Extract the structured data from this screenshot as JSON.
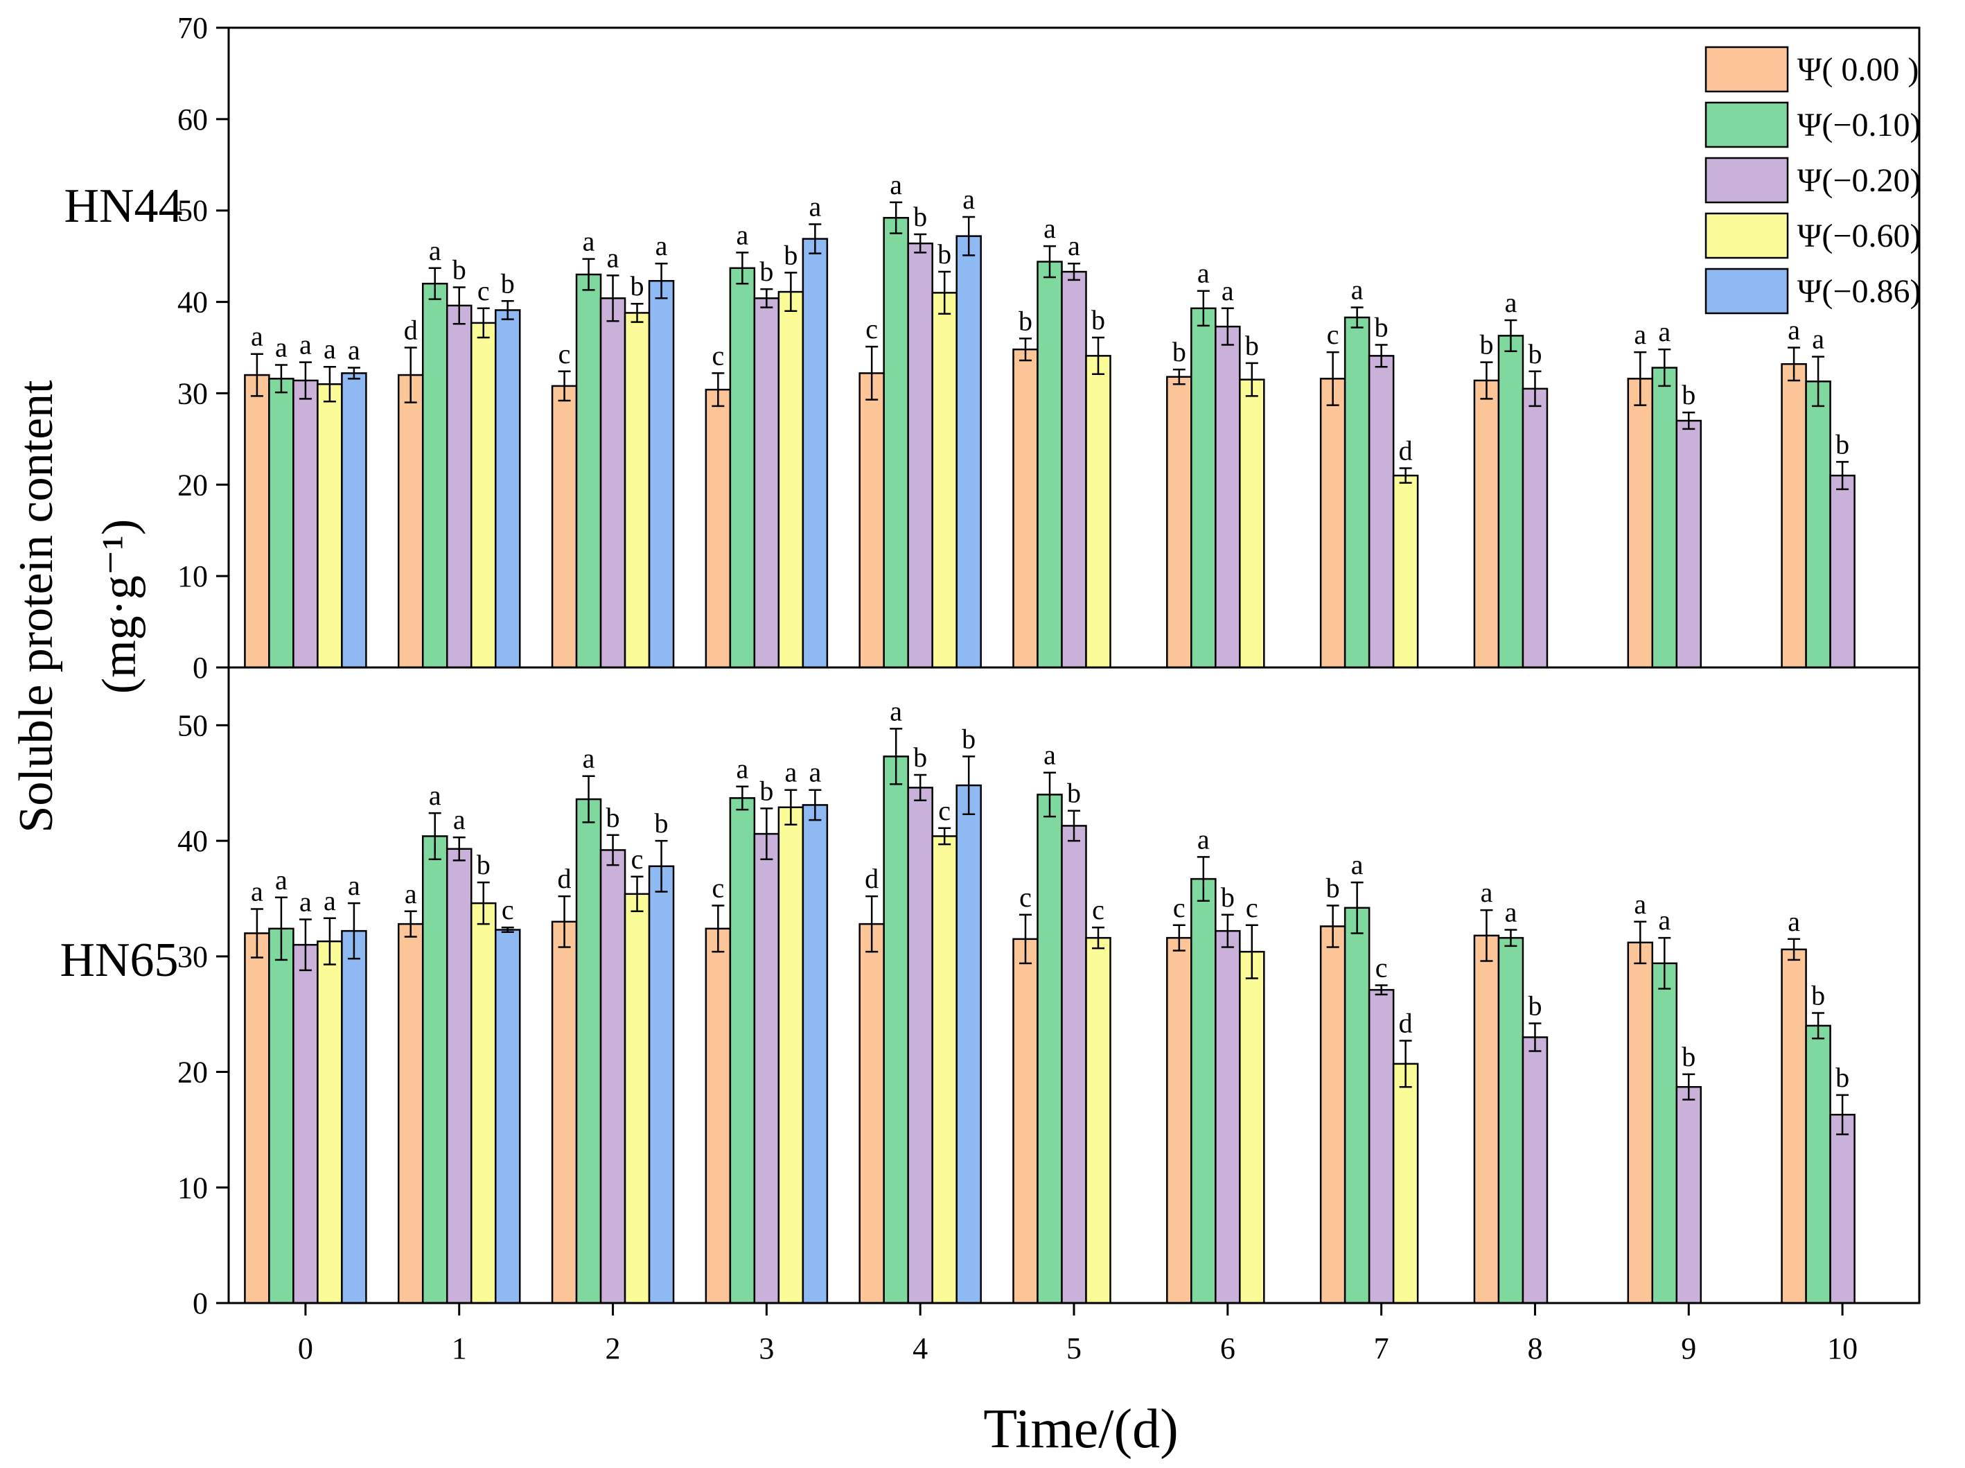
{
  "chart_data": {
    "type": "bar",
    "categories": [
      "0",
      "1",
      "2",
      "3",
      "4",
      "5",
      "6",
      "7",
      "8",
      "9",
      "10"
    ],
    "xlabel": "Time/(d)",
    "ylabel_line1": "Soluble protein content",
    "ylabel_line2": "(mg·g⁻¹)",
    "series_names": [
      "Ψ( 0.00 )",
      "Ψ(−0.10)",
      "Ψ(−0.20)",
      "Ψ(−0.60)",
      "Ψ(−0.86)"
    ],
    "colors": [
      "#FBC598",
      "#7FD99E",
      "#C9B1D9",
      "#FBFB97",
      "#8FB9F3"
    ],
    "legend_position": "top-right",
    "panels": [
      {
        "label": "HN44",
        "ylim": [
          0,
          70
        ],
        "yticks": [
          0,
          10,
          20,
          30,
          40,
          50,
          60,
          70
        ],
        "series": [
          {
            "name": "Ψ( 0.00 )",
            "values": [
              32,
              32,
              30.8,
              30.4,
              32.2,
              34.8,
              31.8,
              31.6,
              31.4,
              31.6,
              33.2
            ],
            "errors": [
              2.3,
              3,
              1.6,
              1.8,
              2.9,
              1.2,
              0.8,
              2.9,
              2,
              2.9,
              1.8
            ],
            "letters": [
              "a",
              "d",
              "c",
              "c",
              "c",
              "b",
              "b",
              "c",
              "b",
              "a",
              "a"
            ]
          },
          {
            "name": "Ψ(−0.10)",
            "values": [
              31.6,
              42,
              43,
              43.7,
              49.2,
              44.4,
              39.3,
              38.3,
              36.3,
              32.8,
              31.3
            ],
            "errors": [
              1.5,
              1.7,
              1.7,
              1.7,
              1.7,
              1.7,
              1.9,
              1.1,
              1.7,
              2,
              2.7
            ],
            "letters": [
              "a",
              "a",
              "a",
              "a",
              "a",
              "a",
              "a",
              "a",
              "a",
              "a",
              "a"
            ]
          },
          {
            "name": "Ψ(−0.20)",
            "values": [
              31.4,
              39.6,
              40.4,
              40.4,
              46.4,
              43.3,
              37.3,
              34.1,
              30.5,
              27,
              21
            ],
            "errors": [
              2,
              2,
              2.5,
              1,
              1,
              0.9,
              2,
              1.2,
              1.9,
              0.9,
              1.5
            ],
            "letters": [
              "a",
              "b",
              "a",
              "b",
              "b",
              "a",
              "a",
              "b",
              "b",
              "b",
              "b"
            ]
          },
          {
            "name": "Ψ(−0.60)",
            "values": [
              31,
              37.7,
              38.8,
              41.1,
              41,
              34.1,
              31.5,
              21,
              null,
              null,
              null
            ],
            "errors": [
              1.9,
              1.6,
              1,
              2.1,
              2.3,
              2,
              1.8,
              0.8,
              null,
              null,
              null
            ],
            "letters": [
              "a",
              "c",
              "b",
              "b",
              "b",
              "b",
              "b",
              "d",
              "",
              "",
              ""
            ]
          },
          {
            "name": "Ψ(−0.86)",
            "values": [
              32.2,
              39.1,
              42.3,
              46.9,
              47.2,
              null,
              null,
              null,
              null,
              null,
              null
            ],
            "errors": [
              0.6,
              1,
              1.9,
              1.6,
              2.1,
              null,
              null,
              null,
              null,
              null,
              null
            ],
            "letters": [
              "a",
              "b",
              "a",
              "a",
              "a",
              "",
              "",
              "",
              "",
              "",
              ""
            ]
          }
        ]
      },
      {
        "label": "HN65",
        "ylim": [
          0,
          55
        ],
        "yticks": [
          0,
          10,
          20,
          30,
          40,
          50
        ],
        "series": [
          {
            "name": "Ψ( 0.00 )",
            "values": [
              32,
              32.8,
              33,
              32.4,
              32.8,
              31.5,
              31.6,
              32.6,
              31.8,
              31.2,
              30.6
            ],
            "errors": [
              2.1,
              1.1,
              2.2,
              2,
              2.4,
              2.1,
              1.1,
              1.8,
              2.2,
              1.8,
              0.9
            ],
            "letters": [
              "a",
              "a",
              "d",
              "c",
              "d",
              "c",
              "c",
              "b",
              "a",
              "a",
              "a"
            ]
          },
          {
            "name": "Ψ(−0.10)",
            "values": [
              32.4,
              40.4,
              43.6,
              43.7,
              47.3,
              44,
              36.7,
              34.2,
              31.6,
              29.4,
              24
            ],
            "errors": [
              2.7,
              2,
              2,
              1,
              2.4,
              1.9,
              1.9,
              2.2,
              0.7,
              2.2,
              1.1
            ],
            "letters": [
              "a",
              "a",
              "a",
              "a",
              "a",
              "a",
              "a",
              "a",
              "a",
              "a",
              "b"
            ]
          },
          {
            "name": "Ψ(−0.20)",
            "values": [
              31,
              39.3,
              39.2,
              40.6,
              44.6,
              41.3,
              32.2,
              27.1,
              23,
              18.7,
              16.3
            ],
            "errors": [
              2.2,
              1,
              1.3,
              2.2,
              1.1,
              1.3,
              1.4,
              0.4,
              1.2,
              1.1,
              1.7
            ],
            "letters": [
              "a",
              "a",
              "b",
              "b",
              "b",
              "b",
              "b",
              "c",
              "b",
              "b",
              "b"
            ]
          },
          {
            "name": "Ψ(−0.60)",
            "values": [
              31.3,
              34.6,
              35.4,
              42.9,
              40.4,
              31.6,
              30.4,
              20.7,
              null,
              null,
              null
            ],
            "errors": [
              2,
              1.8,
              1.5,
              1.5,
              0.7,
              0.9,
              2.3,
              2,
              null,
              null,
              null
            ],
            "letters": [
              "a",
              "b",
              "c",
              "a",
              "c",
              "c",
              "c",
              "d",
              "",
              "",
              ""
            ]
          },
          {
            "name": "Ψ(−0.86)",
            "values": [
              32.2,
              32.3,
              37.8,
              43.1,
              44.8,
              null,
              null,
              null,
              null,
              null,
              null
            ],
            "errors": [
              2.4,
              0.2,
              2.2,
              1.3,
              2.5,
              null,
              null,
              null,
              null,
              null,
              null
            ],
            "letters": [
              "a",
              "c",
              "b",
              "a",
              "b",
              "",
              "",
              "",
              "",
              "",
              ""
            ]
          }
        ]
      }
    ]
  }
}
